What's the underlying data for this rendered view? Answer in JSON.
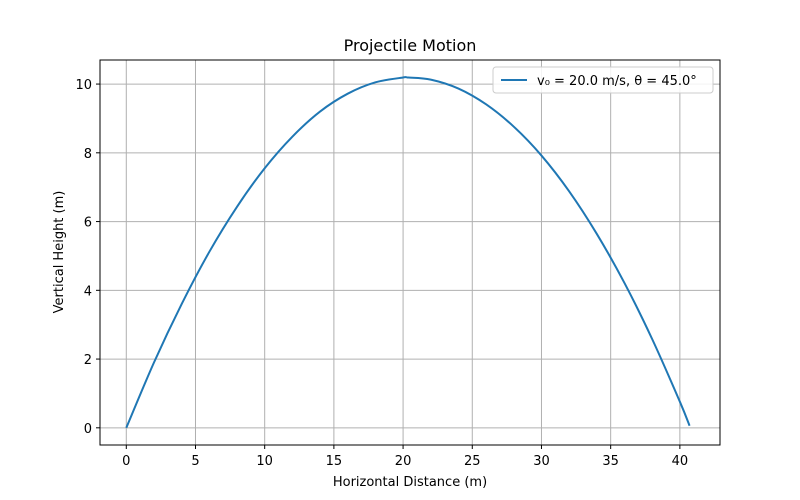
{
  "chart_data": {
    "type": "line",
    "title": "Projectile Motion",
    "xlabel": "Horizontal Distance (m)",
    "ylabel": "Vertical Height (m)",
    "xlim": [
      -1.9,
      42.9
    ],
    "ylim": [
      -0.5,
      10.7
    ],
    "xticks": [
      0,
      5,
      10,
      15,
      20,
      25,
      30,
      35,
      40
    ],
    "yticks": [
      0,
      2,
      4,
      6,
      8,
      10
    ],
    "grid": true,
    "legend_position": "upper right",
    "series": [
      {
        "name": "v₀ = 20.0 m/s, θ = 45.0°",
        "color": "#1f77b4",
        "x": [
          0.0,
          2.0,
          4.0,
          6.0,
          8.0,
          10.0,
          12.0,
          14.0,
          16.0,
          18.0,
          20.0,
          20.39,
          22.0,
          24.0,
          26.0,
          28.0,
          30.0,
          32.0,
          34.0,
          36.0,
          38.0,
          40.0,
          40.7
        ],
        "y": [
          0.0,
          1.9,
          3.6,
          5.12,
          6.43,
          7.55,
          8.47,
          9.2,
          9.72,
          10.05,
          10.19,
          10.19,
          10.13,
          9.87,
          9.41,
          8.76,
          7.92,
          6.88,
          5.64,
          4.21,
          2.58,
          0.76,
          0.06
        ]
      }
    ]
  }
}
